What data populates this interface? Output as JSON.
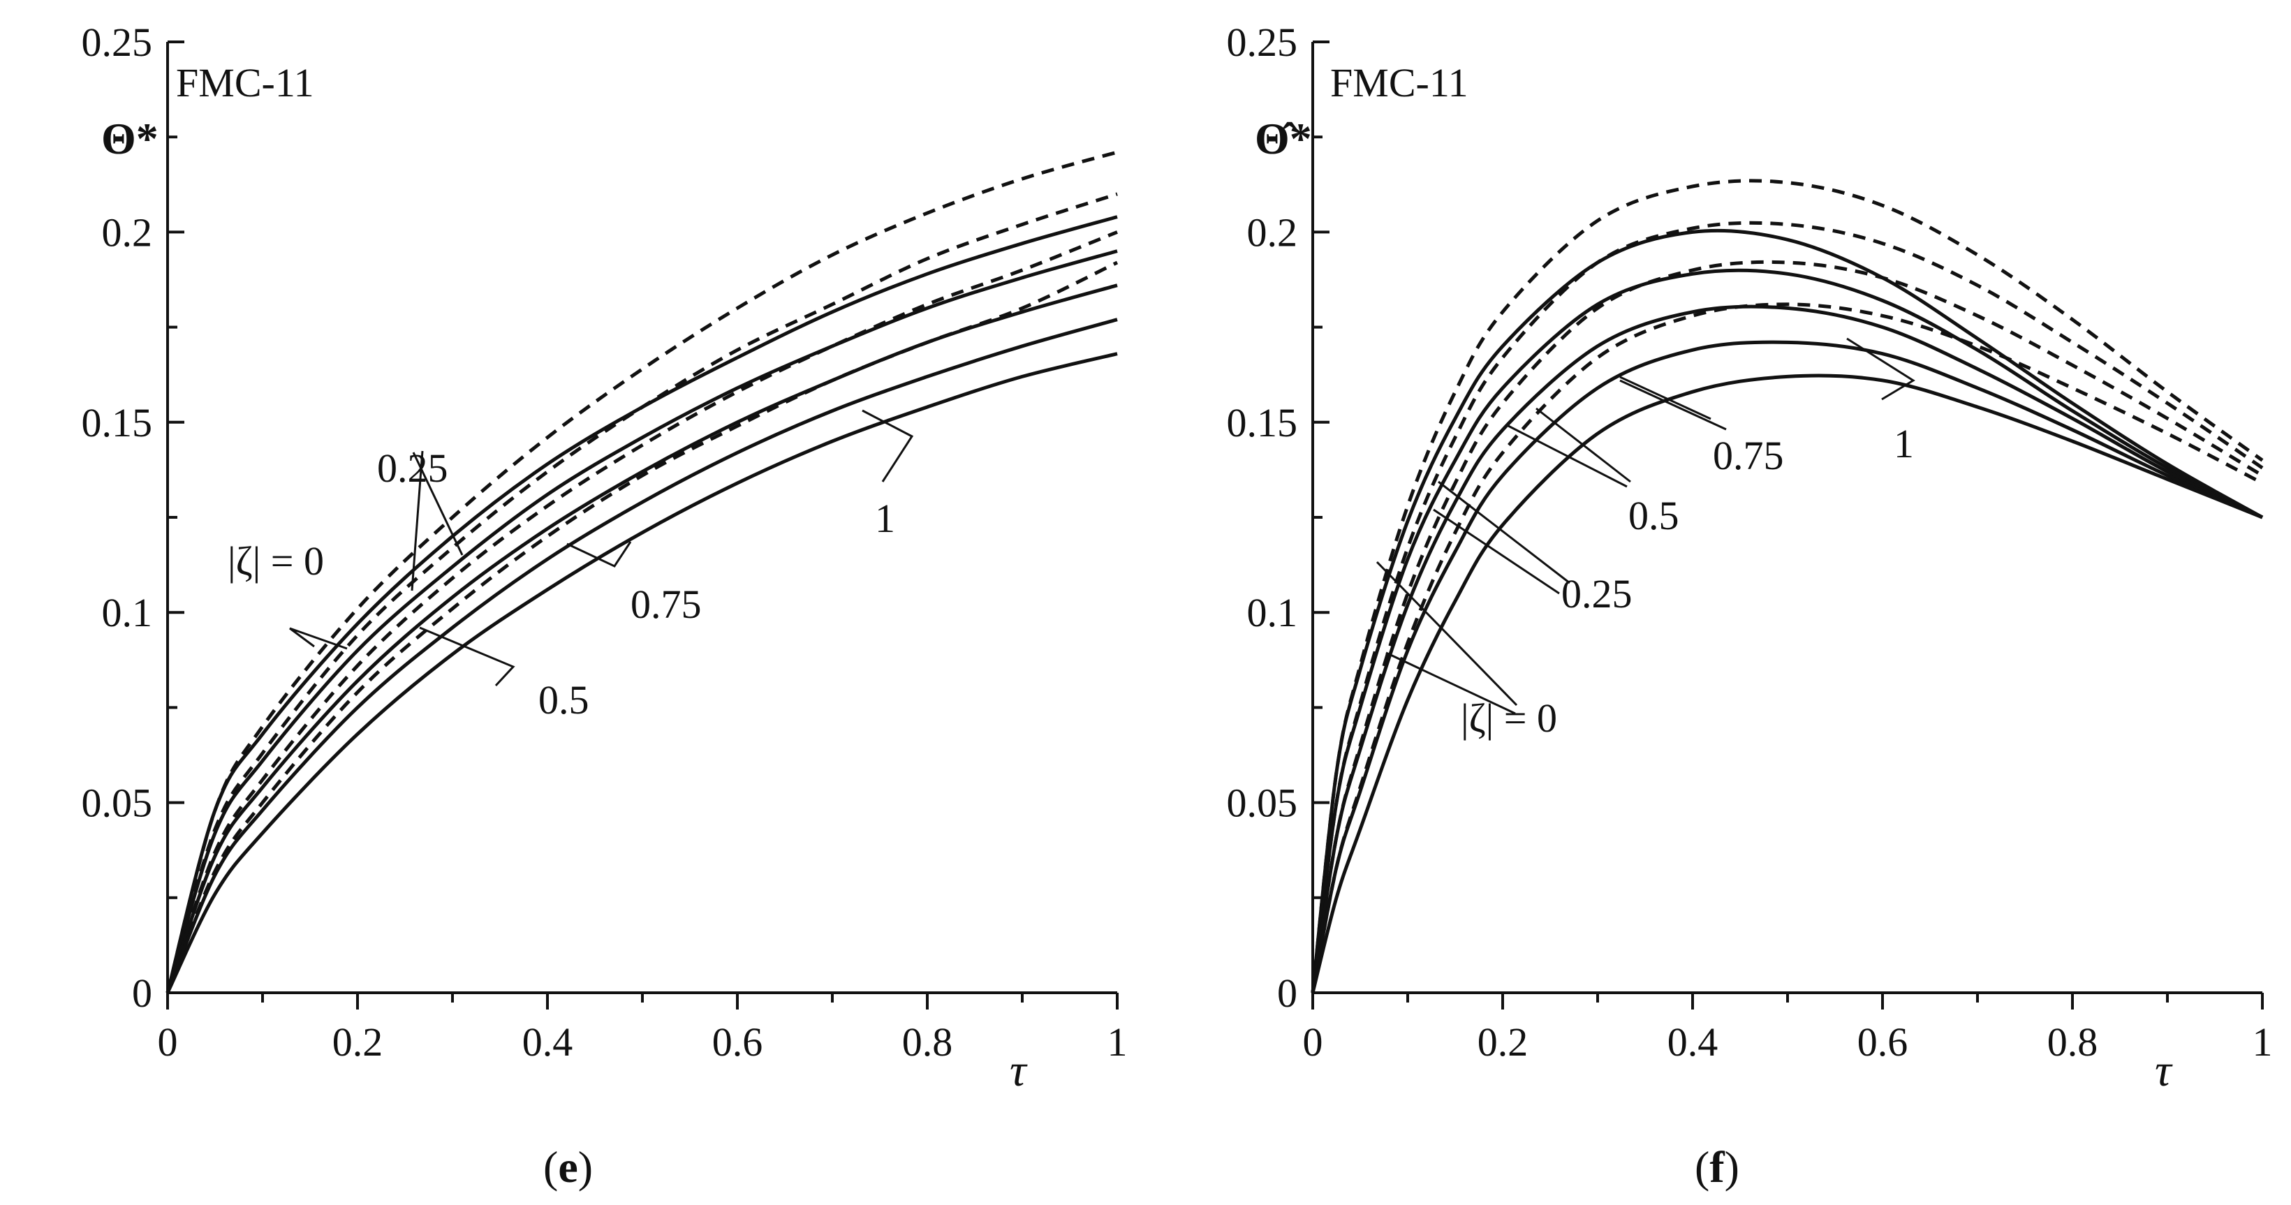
{
  "chart_data": [
    {
      "type": "line",
      "panel": "e",
      "caption_letter": "e",
      "title": "FMC-11",
      "ylabel": "Θ*",
      "xlabel": "τ",
      "xlim": [
        0,
        1
      ],
      "ylim": [
        0,
        0.25
      ],
      "x_ticks": [
        "0",
        "0.2",
        "0.4",
        "0.6",
        "0.8",
        "1"
      ],
      "y_ticks": [
        "0",
        "0.05",
        "0.1",
        "0.15",
        "0.2",
        "0.25"
      ],
      "x": [
        0,
        0.05,
        0.1,
        0.2,
        0.3,
        0.4,
        0.5,
        0.6,
        0.7,
        0.8,
        0.9,
        1.0
      ],
      "series": [
        {
          "name": "|ζ| = 0 (solid)",
          "style": "solid",
          "values": [
            0,
            0.048,
            0.068,
            0.097,
            0.12,
            0.139,
            0.154,
            0.167,
            0.179,
            0.189,
            0.197,
            0.204
          ]
        },
        {
          "name": "|ζ| = 0 (dashed)",
          "style": "dashed",
          "values": [
            0,
            0.048,
            0.07,
            0.101,
            0.125,
            0.146,
            0.164,
            0.18,
            0.194,
            0.205,
            0.214,
            0.221
          ]
        },
        {
          "name": "|ζ| = 0.25 (solid)",
          "style": "solid",
          "values": [
            0,
            0.042,
            0.061,
            0.09,
            0.112,
            0.131,
            0.146,
            0.159,
            0.17,
            0.18,
            0.188,
            0.195
          ]
        },
        {
          "name": "|ζ| = 0.25 (dashed)",
          "style": "dashed",
          "values": [
            0,
            0.043,
            0.063,
            0.094,
            0.117,
            0.137,
            0.154,
            0.169,
            0.181,
            0.193,
            0.202,
            0.21
          ]
        },
        {
          "name": "|ζ| = 0.5 (solid)",
          "style": "solid",
          "values": [
            0,
            0.036,
            0.054,
            0.082,
            0.104,
            0.122,
            0.137,
            0.15,
            0.161,
            0.171,
            0.179,
            0.186
          ]
        },
        {
          "name": "|ζ| = 0.5 (dashed)",
          "style": "dashed",
          "values": [
            0,
            0.037,
            0.056,
            0.086,
            0.109,
            0.128,
            0.144,
            0.158,
            0.17,
            0.181,
            0.19,
            0.2
          ]
        },
        {
          "name": "|ζ| = 0.75 (solid)",
          "style": "solid",
          "values": [
            0,
            0.031,
            0.048,
            0.075,
            0.096,
            0.114,
            0.129,
            0.142,
            0.153,
            0.162,
            0.17,
            0.177
          ]
        },
        {
          "name": "|ζ| = 0.75 (dashed)",
          "style": "dashed",
          "values": [
            0,
            0.032,
            0.05,
            0.079,
            0.101,
            0.12,
            0.136,
            0.149,
            0.161,
            0.171,
            0.18,
            0.192
          ]
        },
        {
          "name": "|ζ| = 1 (solid)",
          "style": "solid",
          "values": [
            0,
            0.026,
            0.042,
            0.068,
            0.089,
            0.106,
            0.121,
            0.134,
            0.145,
            0.154,
            0.162,
            0.168
          ]
        }
      ],
      "annotations": [
        "|ζ| = 0",
        "0.25",
        "0.5",
        "0.75",
        "1"
      ]
    },
    {
      "type": "line",
      "panel": "f",
      "caption_letter": "f",
      "title": "FMC-11",
      "ylabel": "Θ̂*",
      "xlabel": "τ",
      "xlim": [
        0,
        1
      ],
      "ylim": [
        0,
        0.25
      ],
      "x_ticks": [
        "0",
        "0.2",
        "0.4",
        "0.6",
        "0.8",
        "1"
      ],
      "y_ticks": [
        "0",
        "0.05",
        "0.1",
        "0.15",
        "0.2",
        "0.25"
      ],
      "x": [
        0,
        0.025,
        0.05,
        0.1,
        0.15,
        0.2,
        0.3,
        0.4,
        0.5,
        0.6,
        0.7,
        0.8,
        0.9,
        1.0
      ],
      "series": [
        {
          "name": "|ζ| = 0 (solid)",
          "style": "solid",
          "values": [
            0,
            0.058,
            0.085,
            0.124,
            0.151,
            0.17,
            0.192,
            0.2,
            0.198,
            0.188,
            0.172,
            0.155,
            0.139,
            0.125
          ]
        },
        {
          "name": "|ζ| = 0 (dashed)",
          "style": "dashed",
          "values": [
            0,
            0.058,
            0.086,
            0.128,
            0.158,
            0.179,
            0.203,
            0.212,
            0.213,
            0.207,
            0.194,
            0.177,
            0.158,
            0.14
          ]
        },
        {
          "name": "|ζ| = 0.25 (solid)",
          "style": "solid",
          "values": [
            0,
            0.05,
            0.075,
            0.114,
            0.14,
            0.159,
            0.181,
            0.189,
            0.189,
            0.182,
            0.169,
            0.153,
            0.138,
            0.125
          ]
        },
        {
          "name": "|ζ| = 0.25 (dashed)",
          "style": "dashed",
          "values": [
            0,
            0.05,
            0.076,
            0.117,
            0.146,
            0.167,
            0.192,
            0.201,
            0.202,
            0.197,
            0.186,
            0.171,
            0.155,
            0.138
          ]
        },
        {
          "name": "|ζ| = 0.5 (solid)",
          "style": "solid",
          "values": [
            0,
            0.041,
            0.064,
            0.102,
            0.129,
            0.148,
            0.17,
            0.179,
            0.18,
            0.175,
            0.164,
            0.151,
            0.137,
            0.125
          ]
        },
        {
          "name": "|ζ| = 0.5 (dashed)",
          "style": "dashed",
          "values": [
            0,
            0.041,
            0.065,
            0.105,
            0.134,
            0.155,
            0.18,
            0.19,
            0.192,
            0.188,
            0.178,
            0.165,
            0.151,
            0.136
          ]
        },
        {
          "name": "|ζ| = 0.75 (solid)",
          "style": "solid",
          "values": [
            0,
            0.033,
            0.053,
            0.09,
            0.116,
            0.136,
            0.159,
            0.169,
            0.171,
            0.168,
            0.159,
            0.148,
            0.136,
            0.125
          ]
        },
        {
          "name": "|ζ| = 0.75 (dashed)",
          "style": "dashed",
          "values": [
            0,
            0.033,
            0.054,
            0.092,
            0.121,
            0.142,
            0.167,
            0.178,
            0.181,
            0.178,
            0.17,
            0.159,
            0.147,
            0.134
          ]
        },
        {
          "name": "|ζ| = 1 (solid)",
          "style": "solid",
          "values": [
            0,
            0.025,
            0.043,
            0.077,
            0.103,
            0.123,
            0.147,
            0.158,
            0.162,
            0.161,
            0.154,
            0.145,
            0.135,
            0.125
          ]
        }
      ],
      "annotations": [
        "|ζ| = 0",
        "0.25",
        "0.5",
        "0.75",
        "1"
      ]
    }
  ]
}
